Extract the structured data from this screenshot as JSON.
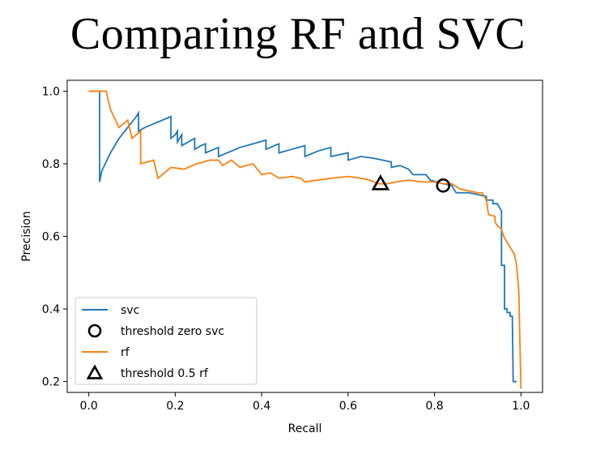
{
  "slide": {
    "title": "Comparing RF and SVC"
  },
  "chart_data": {
    "type": "line",
    "xlabel": "Recall",
    "ylabel": "Precision",
    "xlim": [
      -0.05,
      1.05
    ],
    "ylim": [
      0.17,
      1.03
    ],
    "xticks": [
      0.0,
      0.2,
      0.4,
      0.6,
      0.8,
      1.0
    ],
    "xtick_labels": [
      "0.0",
      "0.2",
      "0.4",
      "0.6",
      "0.8",
      "1.0"
    ],
    "yticks": [
      0.2,
      0.4,
      0.6,
      0.8,
      1.0
    ],
    "ytick_labels": [
      "0.2",
      "0.4",
      "0.6",
      "0.8",
      "1.0"
    ],
    "grid": false,
    "legend_position": "lower-left",
    "legend": [
      {
        "label": "svc",
        "kind": "line",
        "color": "#1f77b4"
      },
      {
        "label": "threshold zero svc",
        "kind": "circle-marker",
        "color": "#000000"
      },
      {
        "label": "rf",
        "kind": "line",
        "color": "#ff7f0e"
      },
      {
        "label": "threshold 0.5 rf",
        "kind": "triangle-marker",
        "color": "#000000"
      }
    ],
    "series": [
      {
        "name": "svc",
        "color": "#1f77b4",
        "step": true,
        "points": [
          [
            0.0,
            1.0
          ],
          [
            0.025,
            1.0
          ],
          [
            0.025,
            0.75
          ],
          [
            0.03,
            0.78
          ],
          [
            0.05,
            0.83
          ],
          [
            0.07,
            0.87
          ],
          [
            0.09,
            0.9
          ],
          [
            0.11,
            0.93
          ],
          [
            0.115,
            0.94
          ],
          [
            0.115,
            0.89
          ],
          [
            0.13,
            0.9
          ],
          [
            0.15,
            0.91
          ],
          [
            0.17,
            0.92
          ],
          [
            0.19,
            0.93
          ],
          [
            0.19,
            0.87
          ],
          [
            0.2,
            0.88
          ],
          [
            0.205,
            0.89
          ],
          [
            0.205,
            0.86
          ],
          [
            0.21,
            0.87
          ],
          [
            0.215,
            0.88
          ],
          [
            0.215,
            0.85
          ],
          [
            0.23,
            0.86
          ],
          [
            0.245,
            0.87
          ],
          [
            0.245,
            0.84
          ],
          [
            0.26,
            0.85
          ],
          [
            0.27,
            0.855
          ],
          [
            0.27,
            0.83
          ],
          [
            0.29,
            0.84
          ],
          [
            0.3,
            0.845
          ],
          [
            0.3,
            0.82
          ],
          [
            0.32,
            0.83
          ],
          [
            0.35,
            0.845
          ],
          [
            0.38,
            0.855
          ],
          [
            0.41,
            0.865
          ],
          [
            0.41,
            0.84
          ],
          [
            0.44,
            0.855
          ],
          [
            0.44,
            0.83
          ],
          [
            0.47,
            0.84
          ],
          [
            0.5,
            0.85
          ],
          [
            0.5,
            0.82
          ],
          [
            0.53,
            0.835
          ],
          [
            0.56,
            0.845
          ],
          [
            0.56,
            0.82
          ],
          [
            0.6,
            0.83
          ],
          [
            0.6,
            0.81
          ],
          [
            0.63,
            0.82
          ],
          [
            0.66,
            0.815
          ],
          [
            0.68,
            0.81
          ],
          [
            0.7,
            0.805
          ],
          [
            0.7,
            0.79
          ],
          [
            0.72,
            0.795
          ],
          [
            0.74,
            0.785
          ],
          [
            0.75,
            0.77
          ],
          [
            0.78,
            0.77
          ],
          [
            0.79,
            0.755
          ],
          [
            0.82,
            0.745
          ],
          [
            0.84,
            0.74
          ],
          [
            0.85,
            0.72
          ],
          [
            0.88,
            0.72
          ],
          [
            0.9,
            0.715
          ],
          [
            0.92,
            0.71
          ],
          [
            0.92,
            0.7
          ],
          [
            0.935,
            0.7
          ],
          [
            0.935,
            0.69
          ],
          [
            0.945,
            0.69
          ],
          [
            0.95,
            0.68
          ],
          [
            0.955,
            0.67
          ],
          [
            0.955,
            0.52
          ],
          [
            0.962,
            0.52
          ],
          [
            0.962,
            0.4
          ],
          [
            0.968,
            0.4
          ],
          [
            0.968,
            0.39
          ],
          [
            0.975,
            0.39
          ],
          [
            0.975,
            0.38
          ],
          [
            0.98,
            0.38
          ],
          [
            0.982,
            0.2
          ],
          [
            0.99,
            0.2
          ]
        ]
      },
      {
        "name": "rf",
        "color": "#ff7f0e",
        "step": false,
        "points": [
          [
            0.0,
            1.0
          ],
          [
            0.04,
            1.0
          ],
          [
            0.05,
            0.95
          ],
          [
            0.07,
            0.9
          ],
          [
            0.09,
            0.92
          ],
          [
            0.1,
            0.87
          ],
          [
            0.12,
            0.89
          ],
          [
            0.12,
            0.8
          ],
          [
            0.15,
            0.81
          ],
          [
            0.16,
            0.76
          ],
          [
            0.18,
            0.78
          ],
          [
            0.19,
            0.79
          ],
          [
            0.22,
            0.785
          ],
          [
            0.25,
            0.8
          ],
          [
            0.28,
            0.81
          ],
          [
            0.3,
            0.81
          ],
          [
            0.31,
            0.795
          ],
          [
            0.33,
            0.81
          ],
          [
            0.35,
            0.79
          ],
          [
            0.38,
            0.8
          ],
          [
            0.39,
            0.785
          ],
          [
            0.4,
            0.77
          ],
          [
            0.42,
            0.775
          ],
          [
            0.44,
            0.76
          ],
          [
            0.47,
            0.765
          ],
          [
            0.49,
            0.76
          ],
          [
            0.5,
            0.75
          ],
          [
            0.53,
            0.755
          ],
          [
            0.56,
            0.76
          ],
          [
            0.6,
            0.765
          ],
          [
            0.63,
            0.76
          ],
          [
            0.65,
            0.755
          ],
          [
            0.67,
            0.745
          ],
          [
            0.69,
            0.745
          ],
          [
            0.71,
            0.75
          ],
          [
            0.74,
            0.755
          ],
          [
            0.77,
            0.75
          ],
          [
            0.8,
            0.75
          ],
          [
            0.82,
            0.745
          ],
          [
            0.84,
            0.745
          ],
          [
            0.86,
            0.73
          ],
          [
            0.88,
            0.725
          ],
          [
            0.9,
            0.72
          ],
          [
            0.91,
            0.72
          ],
          [
            0.92,
            0.7
          ],
          [
            0.925,
            0.66
          ],
          [
            0.94,
            0.655
          ],
          [
            0.94,
            0.64
          ],
          [
            0.945,
            0.63
          ],
          [
            0.955,
            0.62
          ],
          [
            0.96,
            0.6
          ],
          [
            0.98,
            0.56
          ],
          [
            0.985,
            0.55
          ],
          [
            0.99,
            0.52
          ],
          [
            0.995,
            0.45
          ],
          [
            1.0,
            0.18
          ]
        ]
      }
    ],
    "markers": [
      {
        "name": "threshold zero svc",
        "shape": "circle",
        "x": 0.82,
        "y": 0.74
      },
      {
        "name": "threshold 0.5 rf",
        "shape": "triangle",
        "x": 0.675,
        "y": 0.745
      }
    ]
  }
}
